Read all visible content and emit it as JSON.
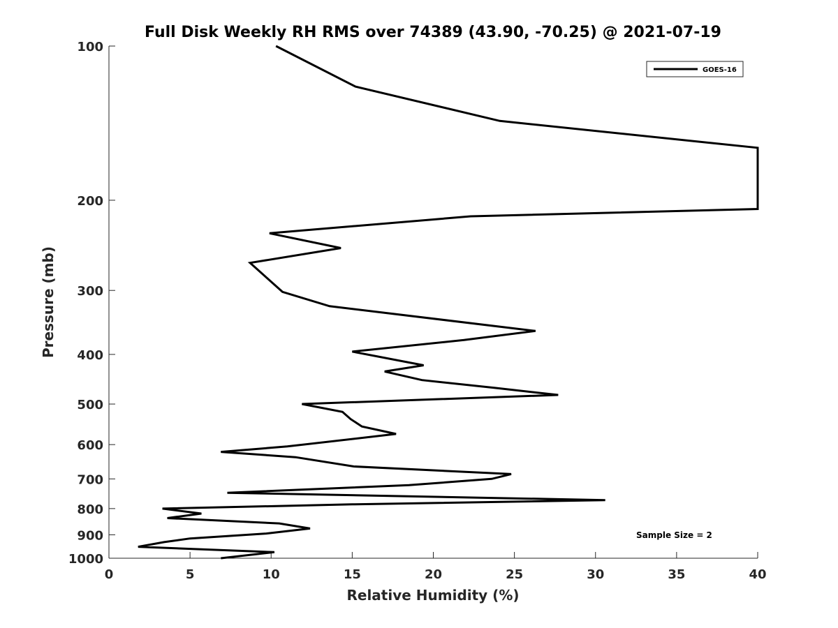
{
  "chart_data": {
    "type": "line",
    "title": "Full Disk Weekly RH RMS over 74389 (43.90, -70.25) @ 2021-07-19",
    "xlabel": "Relative Humidity (%)",
    "ylabel": "Pressure (mb)",
    "xlim": [
      0,
      40
    ],
    "ylim": [
      100,
      1000
    ],
    "y_direction": "reversed",
    "x_ticks": [
      0,
      5,
      10,
      15,
      20,
      25,
      30,
      35,
      40
    ],
    "x_tick_labels": [
      "0",
      "5",
      "10",
      "15",
      "20",
      "25",
      "30",
      "35",
      "40"
    ],
    "y_ticks": [
      100,
      200,
      300,
      400,
      500,
      600,
      700,
      800,
      900,
      1000
    ],
    "y_tick_labels": [
      "100",
      "200",
      "300",
      "400",
      "500",
      "600",
      "700",
      "800",
      "900",
      "1000"
    ],
    "grid": false,
    "legend_position": "top-right",
    "annotation": "Sample Size = 2",
    "series": [
      {
        "name": "GOES-16",
        "color": "#000000",
        "points": [
          [
            10.3,
            100
          ],
          [
            15.2,
            120
          ],
          [
            24.1,
            140
          ],
          [
            40,
            158
          ],
          [
            40,
            208
          ],
          [
            22.3,
            215
          ],
          [
            9.9,
            232
          ],
          [
            14.3,
            248
          ],
          [
            8.7,
            265
          ],
          [
            10.7,
            302
          ],
          [
            13.6,
            322
          ],
          [
            26.3,
            360
          ],
          [
            21.9,
            375
          ],
          [
            15.0,
            395
          ],
          [
            19.4,
            420
          ],
          [
            17.0,
            432
          ],
          [
            19.3,
            449
          ],
          [
            23.8,
            465
          ],
          [
            27.7,
            480
          ],
          [
            11.9,
            500
          ],
          [
            14.4,
            518
          ],
          [
            14.9,
            535
          ],
          [
            15.6,
            553
          ],
          [
            17.7,
            572
          ],
          [
            11.0,
            605
          ],
          [
            6.9,
            620
          ],
          [
            11.5,
            635
          ],
          [
            15.1,
            662
          ],
          [
            24.8,
            685
          ],
          [
            23.6,
            700
          ],
          [
            18.5,
            720
          ],
          [
            7.3,
            745
          ],
          [
            30.6,
            770
          ],
          [
            15.0,
            785
          ],
          [
            3.3,
            800
          ],
          [
            5.7,
            818
          ],
          [
            3.6,
            835
          ],
          [
            10.5,
            855
          ],
          [
            12.4,
            875
          ],
          [
            9.7,
            895
          ],
          [
            5.0,
            915
          ],
          [
            3.4,
            930
          ],
          [
            1.8,
            950
          ],
          [
            10.2,
            973
          ],
          [
            6.9,
            1000
          ]
        ]
      }
    ]
  }
}
